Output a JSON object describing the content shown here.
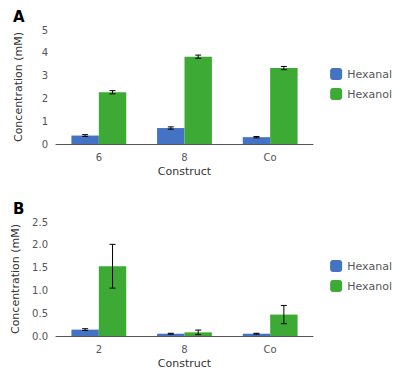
{
  "chart_data": [
    {
      "type": "bar",
      "title": "A",
      "xlabel": "Construct",
      "ylabel": "Concentration (mM)",
      "categories": [
        "6",
        "8",
        "Co"
      ],
      "series": [
        {
          "name": "Hexanal",
          "color": "#4472C4",
          "values": [
            0.37,
            0.7,
            0.3
          ],
          "errors": [
            0.04,
            0.05,
            0.03
          ]
        },
        {
          "name": "Hexanol",
          "color": "#3DAA35",
          "values": [
            2.27,
            3.83,
            3.33
          ],
          "errors": [
            0.07,
            0.07,
            0.07
          ]
        }
      ],
      "ylim": [
        0,
        5
      ],
      "yticks": [
        0,
        1,
        2,
        3,
        4,
        5
      ],
      "grid": false,
      "legend": "right"
    },
    {
      "type": "bar",
      "title": "B",
      "xlabel": "Construct",
      "ylabel": "Concentration (mM)",
      "categories": [
        "2",
        "8",
        "Co"
      ],
      "series": [
        {
          "name": "Hexanal",
          "color": "#4472C4",
          "values": [
            0.14,
            0.05,
            0.05
          ],
          "errors": [
            0.02,
            0.01,
            0.01
          ]
        },
        {
          "name": "Hexanol",
          "color": "#3DAA35",
          "values": [
            1.53,
            0.08,
            0.47
          ],
          "errors": [
            0.48,
            0.05,
            0.2
          ]
        }
      ],
      "ylim": [
        0,
        2.5
      ],
      "yticks": [
        {
          "value": 0,
          "label": "0.0"
        },
        0.5,
        {
          "value": 1,
          "label": "1.0"
        },
        1.5,
        {
          "value": 2,
          "label": "2.0"
        },
        2.5
      ],
      "grid": false,
      "legend": "right"
    }
  ]
}
